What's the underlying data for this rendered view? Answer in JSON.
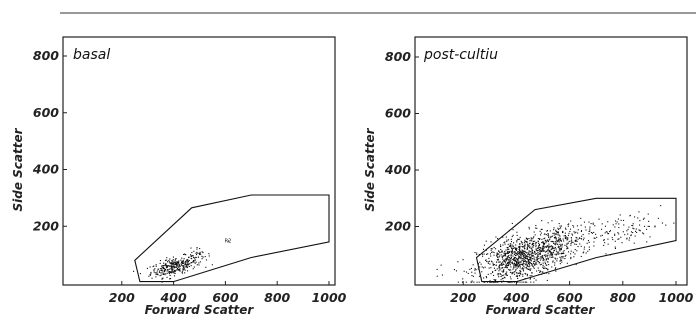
{
  "chart_data": [
    {
      "type": "scatter",
      "title": "basal",
      "xlabel": "Forward Scatter",
      "ylabel": "Side Scatter",
      "xlim": [
        0,
        1000
      ],
      "ylim": [
        0,
        1000
      ],
      "xticks": [
        200,
        400,
        600,
        800,
        1000
      ],
      "yticks": [
        200,
        400,
        600,
        800
      ],
      "grid": false,
      "gate": {
        "label": "R2",
        "vertices": [
          [
            270,
            5
          ],
          [
            250,
            80
          ],
          [
            470,
            265
          ],
          [
            700,
            310
          ],
          [
            1000,
            310
          ],
          [
            1000,
            145
          ],
          [
            700,
            90
          ],
          [
            400,
            5
          ]
        ]
      },
      "clusters": [
        {
          "center": [
            400,
            60
          ],
          "spread": [
            45,
            15
          ],
          "count": 300
        },
        {
          "center": [
            480,
            90
          ],
          "spread": [
            30,
            15
          ],
          "count": 40
        }
      ],
      "outliers": [
        [
          500,
          110
        ],
        [
          520,
          95
        ],
        [
          465,
          125
        ],
        [
          610,
          150
        ]
      ]
    },
    {
      "type": "scatter",
      "title": "post-cultiu",
      "xlabel": "Forward Scatter",
      "ylabel": "Side Scatter",
      "xlim": [
        0,
        1000
      ],
      "ylim": [
        0,
        1000
      ],
      "xticks": [
        200,
        400,
        600,
        800,
        1000
      ],
      "yticks": [
        200,
        400,
        600,
        800
      ],
      "grid": false,
      "gate": {
        "label": "",
        "vertices": [
          [
            270,
            5
          ],
          [
            250,
            90
          ],
          [
            470,
            260
          ],
          [
            700,
            300
          ],
          [
            1000,
            300
          ],
          [
            1000,
            150
          ],
          [
            700,
            90
          ],
          [
            400,
            5
          ]
        ]
      },
      "clusters": [
        {
          "center": [
            420,
            90
          ],
          "spread": [
            85,
            40
          ],
          "count": 1000
        },
        {
          "center": [
            560,
            150
          ],
          "spread": [
            60,
            30
          ],
          "count": 200
        },
        {
          "center": [
            780,
            180
          ],
          "spread": [
            80,
            30
          ],
          "count": 120
        }
      ],
      "outliers": [
        [
          115,
          65
        ],
        [
          100,
          50
        ],
        [
          120,
          30
        ]
      ]
    }
  ]
}
